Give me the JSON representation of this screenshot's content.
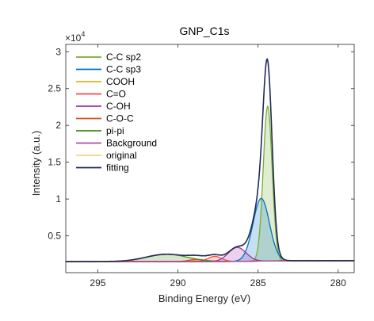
{
  "chart_data": {
    "type": "line",
    "title": "GNP_C1s",
    "xlabel": "Binding Energy (eV)",
    "ylabel": "Intensity (a.u.)",
    "y_exponent_label": "×10",
    "y_exponent_power": "4",
    "xlim": [
      297,
      279
    ],
    "x_reversed": true,
    "ylim": [
      0,
      31000
    ],
    "x_ticks": [
      295,
      290,
      285,
      280
    ],
    "x_tick_labels": [
      "295",
      "290",
      "285",
      "280"
    ],
    "y_ticks": [
      5000,
      10000,
      15000,
      20000,
      25000,
      30000
    ],
    "y_tick_labels": [
      "0.5",
      "1",
      "1.5",
      "2",
      "2.5",
      "3"
    ],
    "legend_position": "top-left",
    "grid": false,
    "background": {
      "a": 1500,
      "b": 120,
      "center": 285.3,
      "width": 0.8
    },
    "series": [
      {
        "name": "C-C sp2",
        "color": "#77AC30",
        "center": 284.4,
        "height": 21000,
        "fwhm": 0.65,
        "fill": true
      },
      {
        "name": "C-C sp3",
        "color": "#0072BD",
        "center": 284.8,
        "height": 8500,
        "fwhm": 1.2,
        "fill": true
      },
      {
        "name": "COOH",
        "color": "#EDB120",
        "center": 288.6,
        "height": 200,
        "fwhm": 1.6,
        "fill": true
      },
      {
        "name": "C=O",
        "color": "#FF4444",
        "center": 287.7,
        "height": 700,
        "fwhm": 1.0,
        "fill": true
      },
      {
        "name": "C-OH",
        "color": "#9E32A8",
        "center": 286.3,
        "height": 1900,
        "fwhm": 1.3,
        "fill": true
      },
      {
        "name": "C-O-C",
        "color": "#D95319",
        "center": 288.8,
        "height": 300,
        "fwhm": 1.2,
        "fill": true
      },
      {
        "name": "pi-pi",
        "color": "#3E8E1A",
        "center": 290.7,
        "height": 1000,
        "fwhm": 3.0,
        "fill": true
      },
      {
        "name": "Background",
        "color": "#A64CA6",
        "fill": false
      },
      {
        "name": "original",
        "color": "#EDB120",
        "fill": false
      },
      {
        "name": "fitting",
        "color": "#1F2A5C",
        "fill": false
      }
    ]
  }
}
